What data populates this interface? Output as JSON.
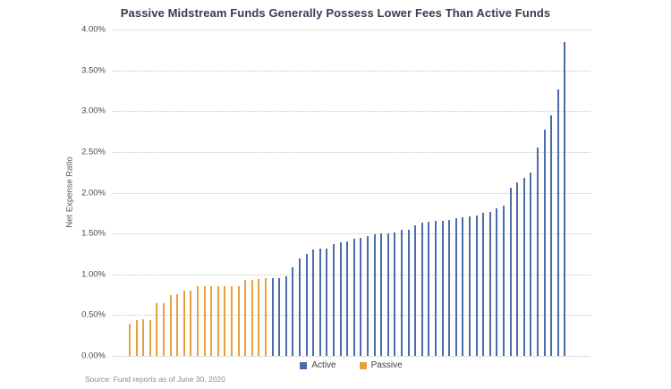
{
  "title": "Passive Midstream Funds Generally Possess Lower Fees Than Active Funds",
  "source": "Source: Fund reports as of June 30, 2020",
  "y_axis": {
    "label": "Net Expense Ratio",
    "tick_labels": [
      "4.00%",
      "3.50%",
      "3.00%",
      "2.50%",
      "2.00%",
      "1.50%",
      "1.00%",
      "0.50%",
      "0.00%"
    ]
  },
  "legend": {
    "items": [
      {
        "label": "Active",
        "color": "#4C6CA8"
      },
      {
        "label": "Passive",
        "color": "#E2A33D"
      }
    ]
  },
  "colors": {
    "active_bar": "#4C6CA8",
    "passive_bar": "#E2A33D",
    "title_text": "#3a3a52",
    "gridline": "#c6c6c6"
  },
  "chart_data": {
    "type": "bar",
    "title": "Passive Midstream Funds Generally Possess Lower Fees Than Active Funds",
    "xlabel": "",
    "ylabel": "Net Expense Ratio",
    "ylim": [
      0,
      4
    ],
    "y_tick_step": 0.5,
    "unit": "%",
    "grid": "horizontal-dotted",
    "legend_position": "bottom-center",
    "sort_order": "ascending by net expense ratio, passive funds first",
    "series": [
      {
        "name": "Passive",
        "color": "#E2A33D",
        "values": [
          0.4,
          0.44,
          0.45,
          0.44,
          0.65,
          0.65,
          0.75,
          0.76,
          0.8,
          0.8,
          0.85,
          0.85,
          0.86,
          0.86,
          0.86,
          0.86,
          0.86,
          0.93,
          0.93,
          0.94,
          0.95
        ]
      },
      {
        "name": "Active",
        "color": "#4C6CA8",
        "values": [
          0.95,
          0.95,
          0.98,
          1.08,
          1.19,
          1.25,
          1.3,
          1.32,
          1.32,
          1.37,
          1.39,
          1.4,
          1.44,
          1.45,
          1.47,
          1.49,
          1.5,
          1.5,
          1.51,
          1.55,
          1.55,
          1.6,
          1.63,
          1.64,
          1.65,
          1.66,
          1.67,
          1.69,
          1.7,
          1.71,
          1.72,
          1.75,
          1.77,
          1.81,
          1.84,
          2.06,
          2.13,
          2.18,
          2.25,
          2.55,
          2.77,
          2.95,
          3.27,
          3.85
        ]
      }
    ]
  }
}
